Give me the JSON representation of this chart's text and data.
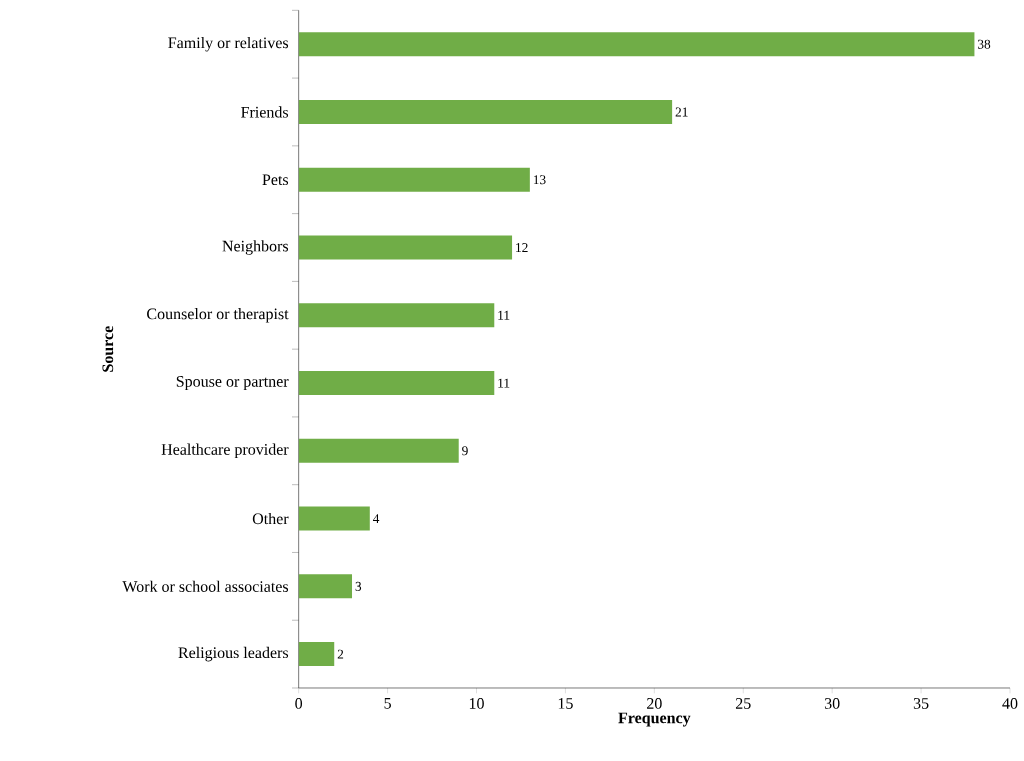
{
  "chart_data": {
    "type": "bar",
    "orientation": "horizontal",
    "xlabel": "Frequency",
    "ylabel": "Source",
    "categories": [
      "Family or relatives",
      "Friends",
      "Pets",
      "Neighbors",
      "Counselor or therapist",
      "Spouse or partner",
      "Healthcare provider",
      "Other",
      "Work or school associates",
      "Religious leaders"
    ],
    "values": [
      38,
      21,
      13,
      12,
      11,
      11,
      9,
      4,
      3,
      2
    ],
    "color": "#70ad47",
    "xlim": [
      0,
      40
    ],
    "xticks": [
      0,
      5,
      10,
      15,
      20,
      25,
      30,
      35,
      40
    ],
    "data_labels": true,
    "grid": false
  }
}
